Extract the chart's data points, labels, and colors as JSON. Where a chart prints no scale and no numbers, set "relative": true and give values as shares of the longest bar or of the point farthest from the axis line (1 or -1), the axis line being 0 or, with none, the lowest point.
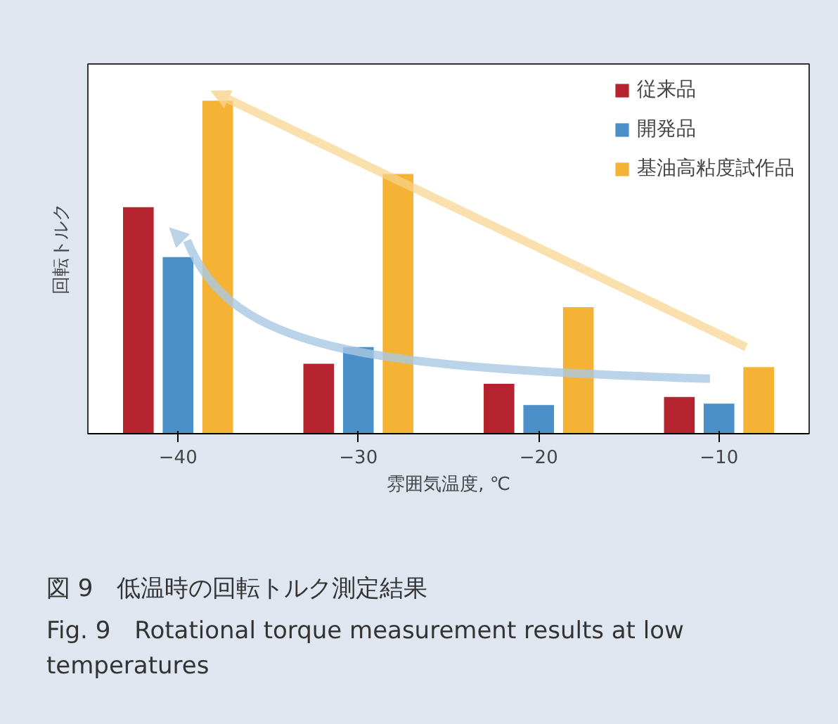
{
  "chart_data": {
    "type": "bar",
    "relative": true,
    "categories": [
      "−40",
      "−30",
      "−20",
      "−10"
    ],
    "xlabel": "雰囲気温度, ℃",
    "ylabel": "回転トルク",
    "legend": "top right",
    "grid": false,
    "series": [
      {
        "name": "従来品",
        "color": "#b5232f",
        "values": [
          0.68,
          0.21,
          0.15,
          0.11
        ]
      },
      {
        "name": "開発品",
        "color": "#4a8fc8",
        "values": [
          0.53,
          0.26,
          0.086,
          0.09
        ]
      },
      {
        "name": "基油高粘度試作品",
        "color": "#f5b335",
        "values": [
          1,
          0.78,
          0.38,
          0.2
        ]
      }
    ],
    "annotations": [
      "図 9　低温時の回転トルク測定結果",
      "Fig. 9　Rotational torque measurement results at low temperatures"
    ]
  }
}
